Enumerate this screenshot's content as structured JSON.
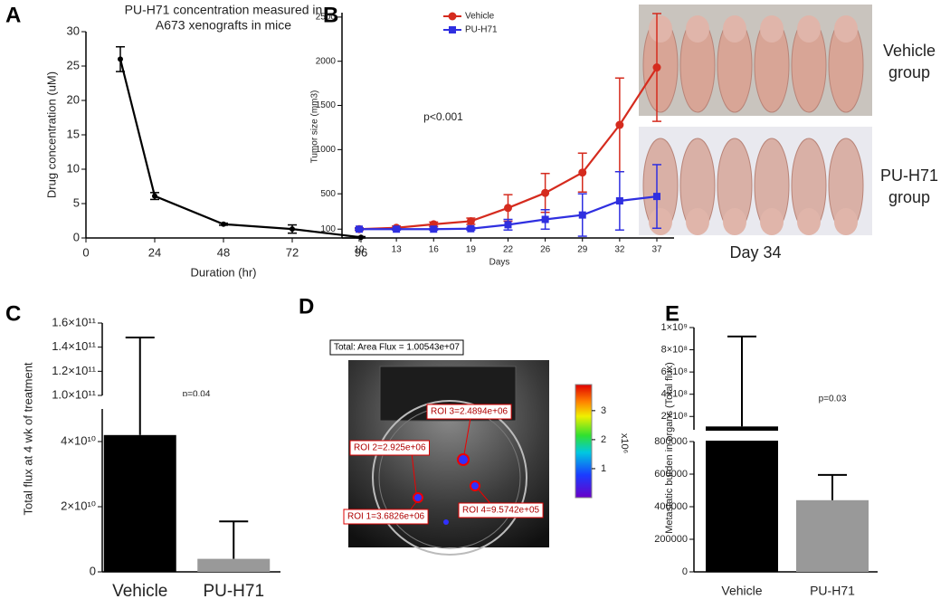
{
  "chart_data": [
    {
      "type": "line",
      "panel": "A",
      "title": [
        "PU-H71 concentration measured in",
        "A673 xenografts in mice"
      ],
      "x": [
        12,
        24,
        48,
        72,
        96
      ],
      "xlim": [
        0,
        96
      ],
      "xticks": [
        0,
        24,
        48,
        72,
        96
      ],
      "ylim": [
        0,
        30
      ],
      "yticks": [
        0,
        5,
        10,
        15,
        20,
        25,
        30
      ],
      "xlabel": "Duration (hr)",
      "ylabel": "Drug concentration (uM)",
      "series": [
        {
          "color": "#000000",
          "marker": "circle",
          "values": [
            26,
            6.1,
            2,
            1.3,
            0.1
          ],
          "errors": [
            1.8,
            0.5,
            0.15,
            0.6,
            0.1
          ]
        }
      ]
    },
    {
      "type": "line",
      "panel": "B",
      "categories": [
        "10",
        "13",
        "16",
        "19",
        "22",
        "26",
        "29",
        "32",
        "37"
      ],
      "ylim": [
        0,
        2550
      ],
      "yticks": [
        100,
        500,
        1000,
        1500,
        2000,
        2500
      ],
      "xlabel": "Days",
      "ylabel": "Tumor size (mm3)",
      "annotation": "p<0.001",
      "legend": "top",
      "series": [
        {
          "name": "Vehicle",
          "color": "#d52b1e",
          "marker": "circle",
          "values": [
            100,
            115,
            155,
            190,
            340,
            510,
            740,
            1280,
            1930
          ],
          "errors": [
            15,
            20,
            25,
            35,
            150,
            220,
            220,
            530,
            610
          ]
        },
        {
          "name": "PU-H71",
          "color": "#2f2fe0",
          "marker": "square",
          "values": [
            100,
            100,
            100,
            105,
            150,
            210,
            260,
            420,
            470
          ],
          "errors": [
            10,
            10,
            10,
            15,
            60,
            110,
            240,
            330,
            360
          ]
        }
      ]
    },
    {
      "type": "bar",
      "panel": "C",
      "categories": [
        "Vehicle",
        "PU-H71"
      ],
      "values": [
        42000000000,
        4000000000
      ],
      "errors": [
        106000000000,
        11500000000
      ],
      "colors": [
        "#000000",
        "#999999"
      ],
      "ylim": [
        0,
        160000000000
      ],
      "ybreak": [
        50000000000,
        100000000000
      ],
      "yticks": [
        0,
        {
          "value": 20000000000,
          "label": "2×10¹⁰"
        },
        {
          "value": 40000000000,
          "label": "4×10¹⁰"
        },
        {
          "value": 100000000000,
          "label": "1.0×10¹¹"
        },
        {
          "value": 120000000000,
          "label": "1.2×10¹¹"
        },
        {
          "value": 140000000000,
          "label": "1.4×10¹¹"
        },
        {
          "value": 160000000000,
          "label": "1.6×10¹¹"
        }
      ],
      "ylabel": "Total flux at 4 wk of treatment",
      "annotation": "p=0.04"
    },
    {
      "type": "bar",
      "panel": "E",
      "categories": [
        "Vehicle",
        "PU-H71"
      ],
      "values": [
        110000000,
        440000
      ],
      "errors": [
        810000000,
        155000
      ],
      "colors": [
        "#000000",
        "#999999"
      ],
      "ylim": [
        0,
        1000000000
      ],
      "ybreak": [
        800000,
        80000000
      ],
      "yticks": [
        0,
        200000,
        400000,
        600000,
        800000,
        {
          "value": 200000000,
          "label": "2×10⁸"
        },
        {
          "value": 400000000,
          "label": "4×10⁸"
        },
        {
          "value": 600000000,
          "label": "6×10⁸"
        },
        {
          "value": 800000000,
          "label": "8×10⁸"
        },
        {
          "value": 1000000000,
          "label": "1×10⁹"
        }
      ],
      "ylabel": "Metastatic burden in organs (Total flux)",
      "annotation": "p=0.03"
    }
  ],
  "imaging": {
    "panel": "D",
    "total": "Total: Area Flux = 1.00543e+07",
    "rois": [
      "ROI 3=2.4894e+06",
      "ROI 2=2.925e+06",
      "ROI 1=3.6826e+06",
      "ROI 4=9.5742e+05"
    ],
    "colorbar": {
      "ticks": [
        1,
        2,
        3
      ],
      "range": [
        0,
        3.9
      ],
      "label": "x10⁶"
    }
  },
  "photos": {
    "labels": [
      [
        "Vehicle",
        "group"
      ],
      [
        "PU-H71",
        "group"
      ]
    ],
    "caption": "Day 34"
  }
}
